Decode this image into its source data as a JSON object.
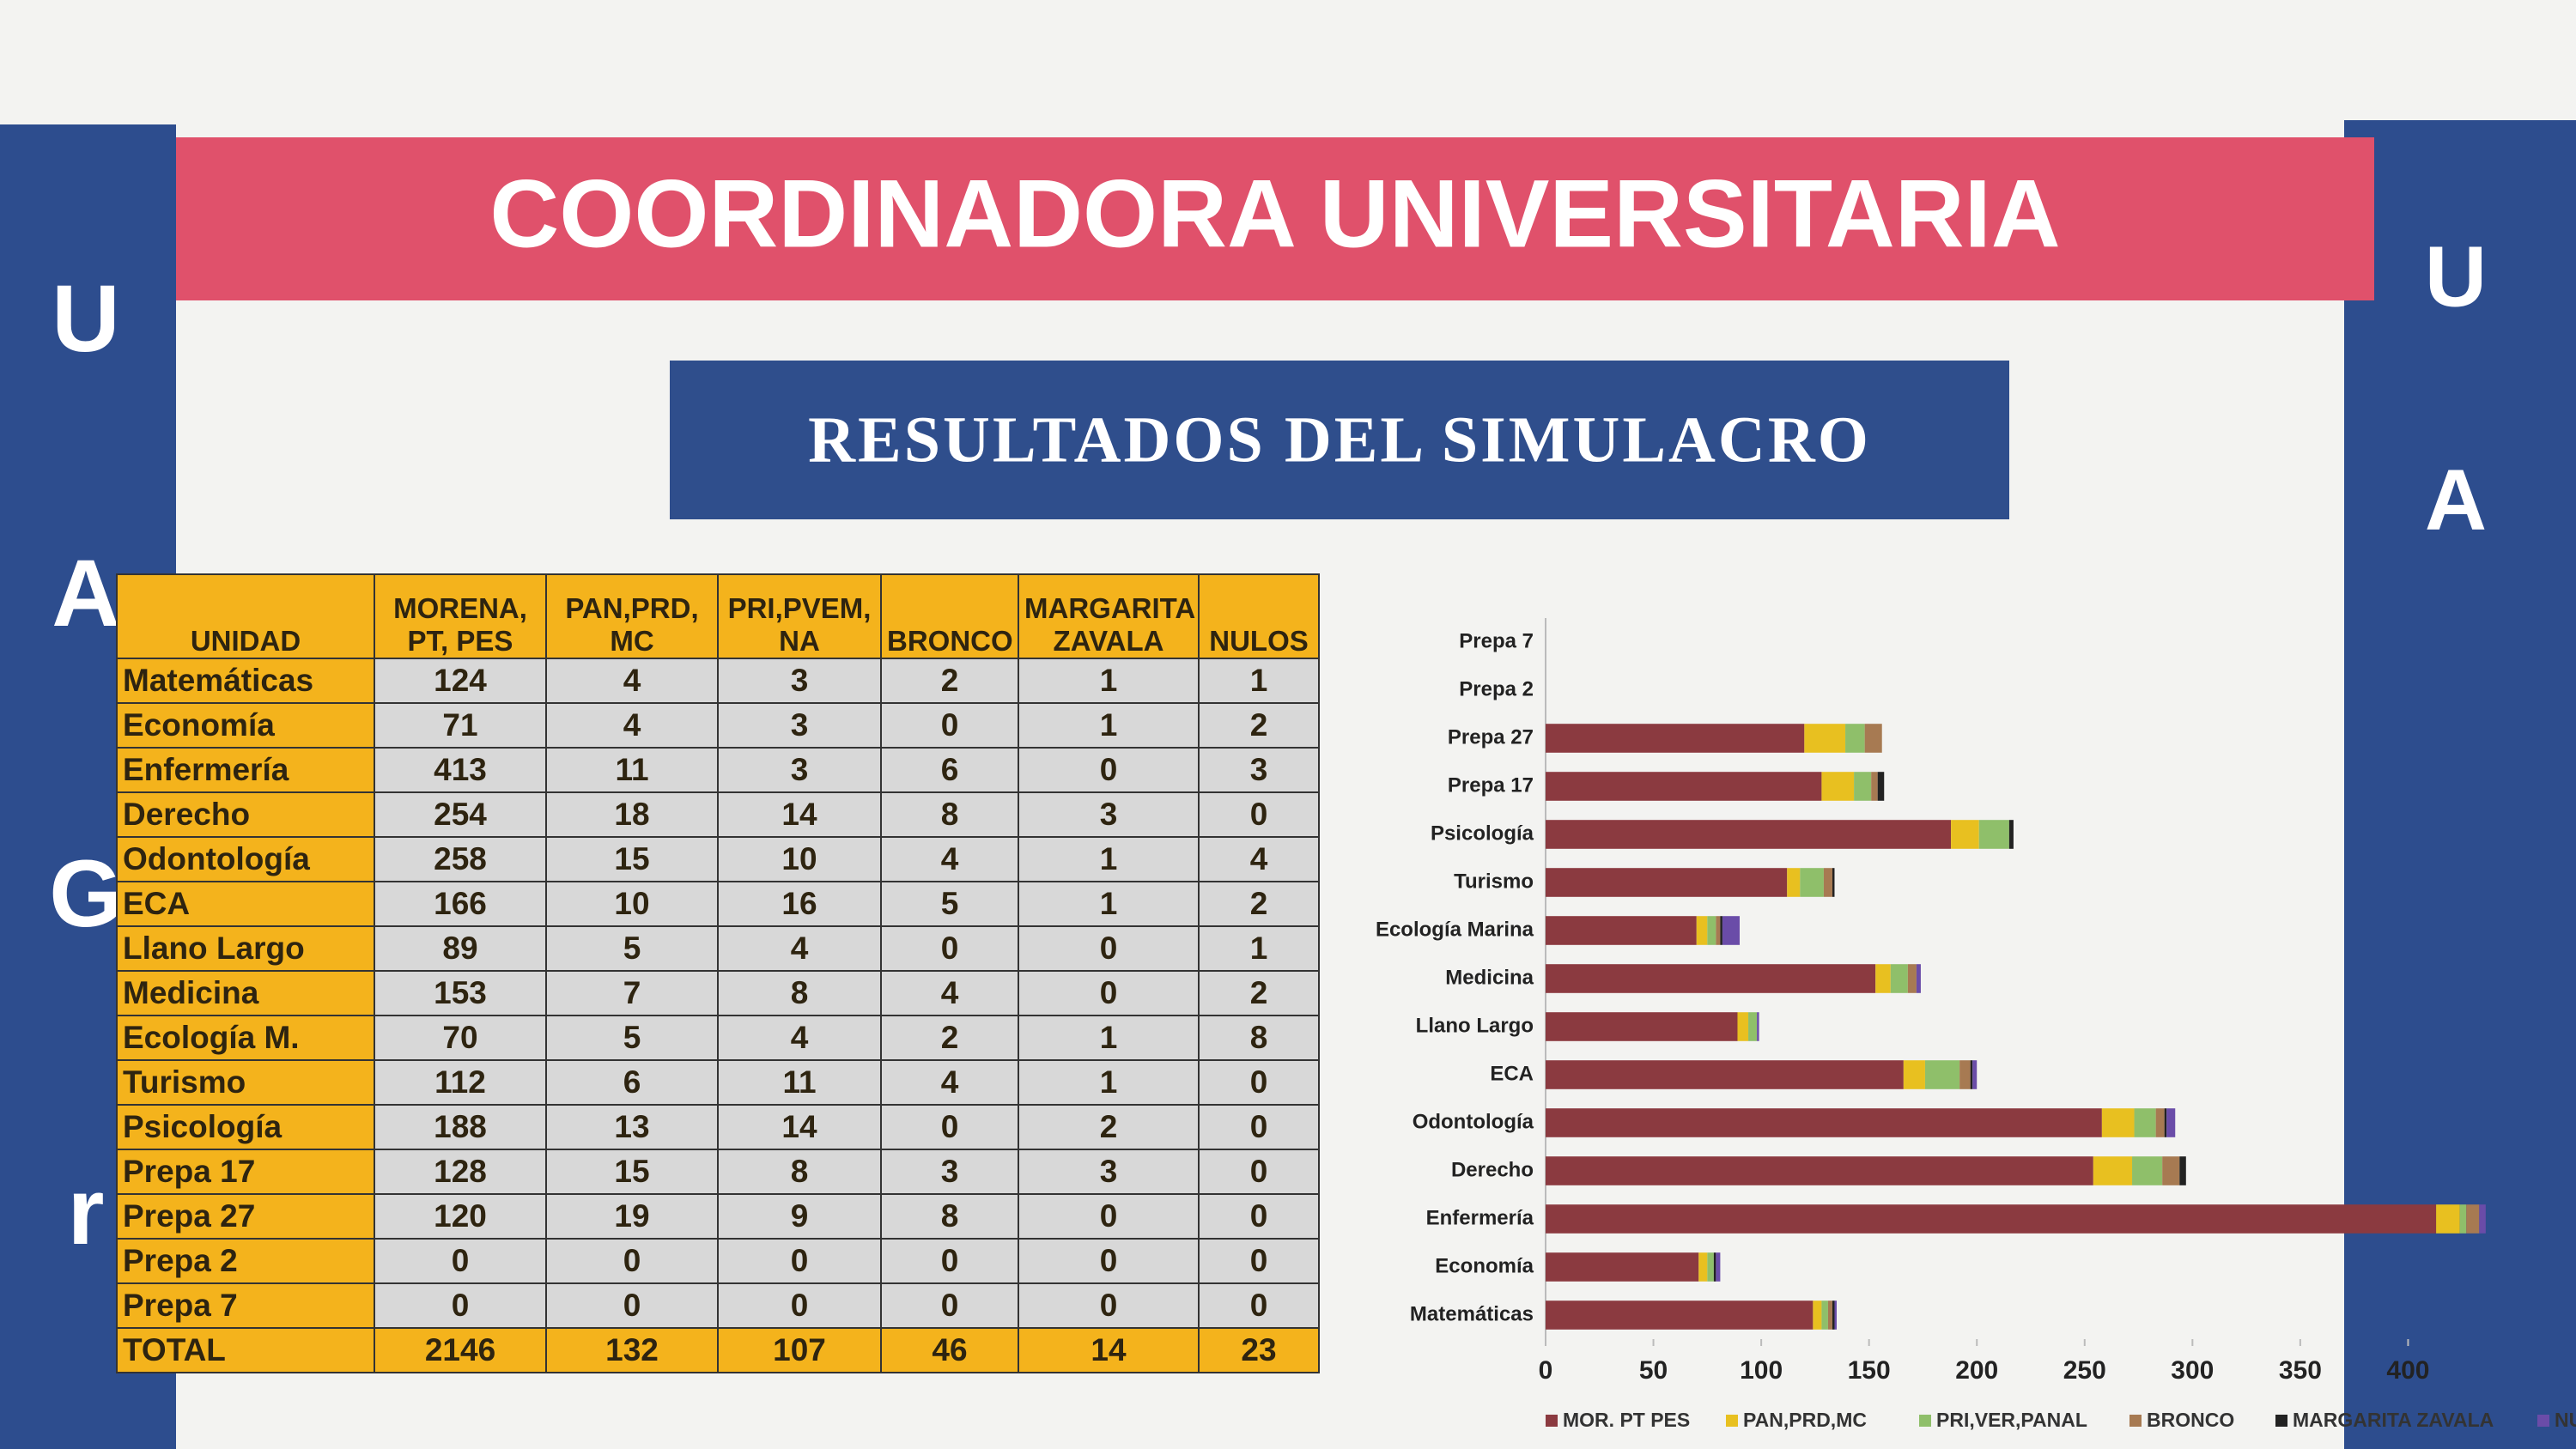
{
  "header": {
    "title": "COORDINADORA UNIVERSITARIA",
    "subtitle": "RESULTADOS DEL SIMULACRO",
    "left_letters": [
      "U",
      "A",
      "G",
      "r"
    ],
    "right_letters": [
      "U",
      "A"
    ]
  },
  "table": {
    "columns": [
      "UNIDAD",
      "MORENA, PT, PES",
      "PAN,PRD, MC",
      "PRI,PVEM, NA",
      "BRONCO",
      "MARGARITA ZAVALA",
      "NULOS"
    ],
    "rows": [
      [
        "Matemáticas",
        124,
        4,
        3,
        2,
        1,
        1
      ],
      [
        "Economía",
        71,
        4,
        3,
        0,
        1,
        2
      ],
      [
        "Enfermería",
        413,
        11,
        3,
        6,
        0,
        3
      ],
      [
        "Derecho",
        254,
        18,
        14,
        8,
        3,
        0
      ],
      [
        "Odontología",
        258,
        15,
        10,
        4,
        1,
        4
      ],
      [
        "ECA",
        166,
        10,
        16,
        5,
        1,
        2
      ],
      [
        "Llano Largo",
        89,
        5,
        4,
        0,
        0,
        1
      ],
      [
        "Medicina",
        153,
        7,
        8,
        4,
        0,
        2
      ],
      [
        "Ecología M.",
        70,
        5,
        4,
        2,
        1,
        8
      ],
      [
        "Turismo",
        112,
        6,
        11,
        4,
        1,
        0
      ],
      [
        "Psicología",
        188,
        13,
        14,
        0,
        2,
        0
      ],
      [
        "Prepa 17",
        128,
        15,
        8,
        3,
        3,
        0
      ],
      [
        "Prepa 27",
        120,
        19,
        9,
        8,
        0,
        0
      ],
      [
        "Prepa 2",
        0,
        0,
        0,
        0,
        0,
        0
      ],
      [
        "Prepa 7",
        0,
        0,
        0,
        0,
        0,
        0
      ]
    ],
    "total": [
      "TOTAL",
      2146,
      132,
      107,
      46,
      14,
      23
    ]
  },
  "chart_data": {
    "type": "stacked_barh",
    "categories": [
      "Prepa 7",
      "Prepa 2",
      "Prepa 27",
      "Prepa 17",
      "Psicología",
      "Turismo",
      "Ecología Marina",
      "Medicina",
      "Llano Largo",
      "ECA",
      "Odontología",
      "Derecho",
      "Enfermería",
      "Economía",
      "Matemáticas"
    ],
    "series": [
      {
        "name": "MOR. PT PES",
        "color": "#8b3a40",
        "values": [
          0,
          0,
          120,
          128,
          188,
          112,
          70,
          153,
          89,
          166,
          258,
          254,
          413,
          71,
          124
        ]
      },
      {
        "name": "PAN,PRD,MC",
        "color": "#e8c020",
        "values": [
          0,
          0,
          19,
          15,
          13,
          6,
          5,
          7,
          5,
          10,
          15,
          18,
          11,
          4,
          4
        ]
      },
      {
        "name": "PRI,VER,PANAL",
        "color": "#8fbf6a",
        "values": [
          0,
          0,
          9,
          8,
          14,
          11,
          4,
          8,
          4,
          16,
          10,
          14,
          3,
          3,
          3
        ]
      },
      {
        "name": "BRONCO",
        "color": "#a77a52",
        "values": [
          0,
          0,
          8,
          3,
          0,
          4,
          2,
          4,
          0,
          5,
          4,
          8,
          6,
          0,
          2
        ]
      },
      {
        "name": "MARGARITA ZAVALA",
        "color": "#222222",
        "values": [
          0,
          0,
          0,
          3,
          2,
          1,
          1,
          0,
          0,
          1,
          1,
          3,
          0,
          1,
          1
        ]
      },
      {
        "name": "NULOS",
        "color": "#6a4ca8",
        "values": [
          0,
          0,
          0,
          0,
          0,
          0,
          8,
          2,
          1,
          2,
          4,
          0,
          3,
          2,
          1
        ]
      }
    ],
    "xlim": [
      0,
      450
    ],
    "xticks": [
      0,
      50,
      100,
      150,
      200,
      250,
      300,
      350,
      400
    ],
    "legend": "bottom"
  }
}
